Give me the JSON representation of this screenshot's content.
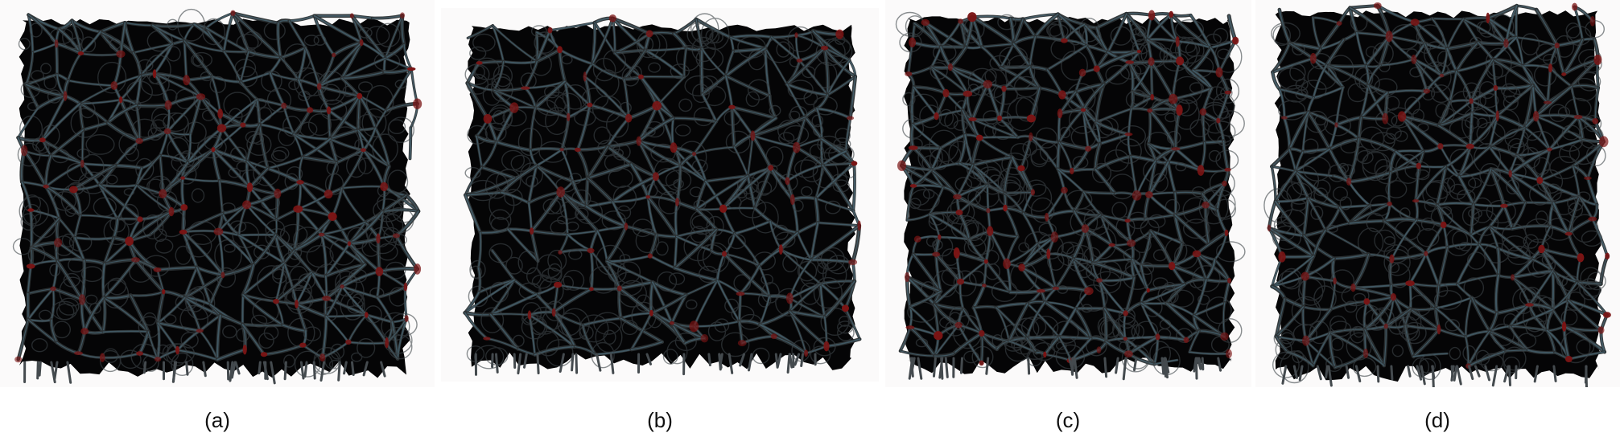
{
  "figure": {
    "panels": [
      {
        "caption": "(a)",
        "description": "foam-scaffold-render"
      },
      {
        "caption": "(b)",
        "description": "foam-scaffold-render"
      },
      {
        "caption": "(c)",
        "description": "foam-scaffold-render"
      },
      {
        "caption": "(d)",
        "description": "foam-scaffold-render"
      }
    ],
    "colors": {
      "background": "#fbfafa",
      "strut": "#1b2228",
      "strut_highlight": "#4a6a78",
      "node": "#7a1414",
      "void": "#050506"
    }
  }
}
